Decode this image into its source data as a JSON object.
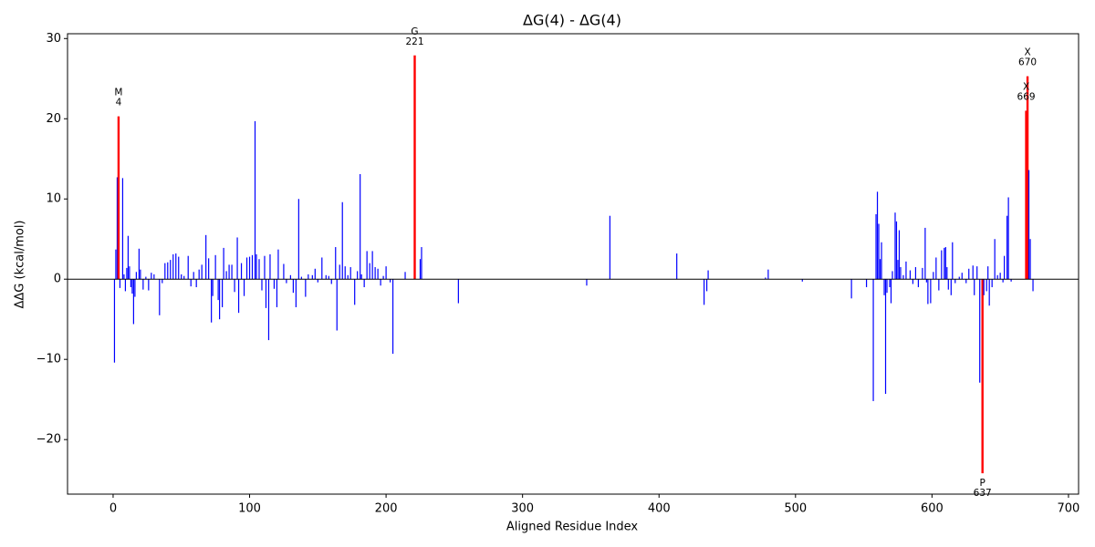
{
  "chart_data": {
    "type": "bar",
    "title": "ΔG(4) - ΔG(4)",
    "xlabel": "Aligned Residue Index",
    "ylabel": "ΔΔG (kcal/mol)",
    "x": [
      1,
      2,
      3,
      4,
      5,
      7,
      8,
      9,
      10,
      11,
      12,
      13,
      14,
      15,
      16,
      17,
      19,
      20,
      22,
      24,
      26,
      28,
      30,
      34,
      36,
      38,
      40,
      42,
      44,
      46,
      48,
      50,
      52,
      55,
      57,
      59,
      61,
      63,
      65,
      68,
      70,
      72,
      73,
      75,
      77,
      78,
      80,
      81,
      83,
      85,
      87,
      89,
      91,
      92,
      94,
      96,
      98,
      100,
      102,
      104,
      105,
      107,
      109,
      111,
      112,
      114,
      115,
      118,
      120,
      121,
      125,
      127,
      130,
      132,
      134,
      136,
      138,
      141,
      143,
      146,
      148,
      150,
      153,
      156,
      158,
      160,
      163,
      164,
      166,
      168,
      170,
      172,
      174,
      177,
      179,
      181,
      182,
      184,
      186,
      188,
      190,
      192,
      194,
      196,
      198,
      200,
      203,
      205,
      214,
      221,
      225,
      226,
      253,
      347,
      364,
      413,
      433,
      435,
      436,
      478,
      480,
      505,
      541,
      552,
      557,
      559,
      560,
      561,
      562,
      563,
      565,
      566,
      567,
      569,
      570,
      571,
      573,
      574,
      575,
      576,
      577,
      579,
      581,
      584,
      586,
      588,
      590,
      593,
      595,
      596,
      597,
      599,
      601,
      603,
      605,
      607,
      609,
      610,
      611,
      612,
      614,
      615,
      617,
      620,
      622,
      625,
      627,
      630,
      631,
      633,
      635,
      637,
      638,
      640,
      641,
      642,
      644,
      646,
      648,
      650,
      652,
      653,
      655,
      656,
      658,
      669,
      670,
      671,
      672,
      674
    ],
    "values": [
      -10.4,
      3.7,
      12.7,
      20.3,
      -1.1,
      12.6,
      0.6,
      -1.5,
      1.4,
      5.4,
      1.6,
      -1.0,
      -1.8,
      -5.6,
      -2.2,
      0.9,
      3.8,
      1.2,
      -1.3,
      0.3,
      -1.4,
      0.8,
      0.6,
      -4.5,
      -0.5,
      2.0,
      2.1,
      2.4,
      3.1,
      3.2,
      2.8,
      0.6,
      0.4,
      2.9,
      -0.9,
      0.9,
      -1.0,
      1.2,
      1.8,
      5.5,
      2.6,
      -5.4,
      -2.1,
      3.0,
      -2.6,
      -5.0,
      -3.5,
      3.9,
      1.0,
      1.8,
      1.8,
      -1.6,
      5.2,
      -4.2,
      2.0,
      -2.1,
      2.7,
      2.8,
      3.0,
      19.7,
      3.1,
      2.5,
      -1.4,
      2.9,
      -3.6,
      -7.6,
      3.1,
      -1.2,
      -3.5,
      3.7,
      1.9,
      -0.5,
      0.5,
      -1.7,
      -3.5,
      10.0,
      0.3,
      -2.2,
      0.6,
      0.5,
      1.3,
      -0.4,
      2.7,
      0.5,
      0.4,
      -0.6,
      4.0,
      -6.4,
      1.8,
      9.6,
      1.6,
      0.5,
      1.5,
      -3.2,
      1.0,
      13.1,
      0.6,
      -1.0,
      3.5,
      2.0,
      3.5,
      1.5,
      1.3,
      -0.8,
      0.4,
      1.6,
      -0.4,
      -9.3,
      0.9,
      27.9,
      2.5,
      4.0,
      -3.0,
      -0.8,
      7.9,
      3.2,
      -3.2,
      -1.5,
      1.1,
      0.2,
      1.2,
      -0.3,
      -2.4,
      -1.0,
      -15.2,
      8.1,
      10.9,
      6.9,
      2.5,
      4.6,
      -2.0,
      -14.3,
      -1.7,
      -1.0,
      -3.0,
      1.0,
      8.3,
      7.2,
      2.4,
      6.1,
      1.5,
      0.5,
      2.2,
      1.1,
      -0.6,
      1.5,
      -1.0,
      1.4,
      6.4,
      -0.4,
      -3.1,
      -3.0,
      0.9,
      2.7,
      -1.4,
      3.6,
      3.9,
      4.0,
      1.5,
      -1.3,
      -2.0,
      4.6,
      -0.5,
      0.3,
      0.8,
      -0.5,
      1.3,
      1.7,
      -2.0,
      1.6,
      -12.9,
      -24.2,
      -2.0,
      -1.5,
      1.6,
      -3.3,
      -1.0,
      5.0,
      0.5,
      0.8,
      -0.4,
      2.9,
      7.9,
      10.2,
      -0.3,
      21.0,
      25.3,
      13.6,
      5.0,
      -1.5
    ],
    "color": "#0000ff",
    "highlight_color": "#ff0000",
    "annotations": [
      {
        "label": "M",
        "x": 4
      },
      {
        "label": "G",
        "x": 221
      },
      {
        "label": "P",
        "x": 637
      },
      {
        "label": "X",
        "x": 669
      },
      {
        "label": "X",
        "x": 670
      }
    ],
    "xlim": [
      -33.4,
      707.4
    ],
    "ylim": [
      -26.8,
      30.6
    ],
    "xticks": [
      0,
      100,
      200,
      300,
      400,
      500,
      600,
      700
    ],
    "yticks": [
      {
        "value": -20,
        "label": "−20"
      },
      {
        "value": -10,
        "label": "−10"
      },
      0,
      10,
      20,
      30
    ]
  }
}
